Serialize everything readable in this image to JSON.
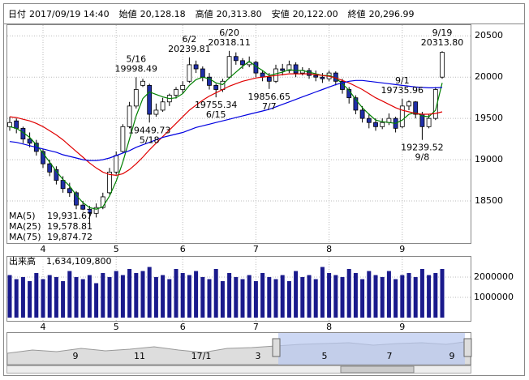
{
  "header": {
    "items": [
      {
        "label": "日付",
        "value": "2017/09/19 14:40",
        "color": "#000000"
      },
      {
        "label": "始値",
        "value": "20,128.18",
        "color": "#000000"
      },
      {
        "label": "高値",
        "value": "20,313.80",
        "color": "#e00000"
      },
      {
        "label": "安値",
        "value": "20,122.00",
        "color": "#008000"
      },
      {
        "label": "終値",
        "value": "20,296.99",
        "color": "#000000"
      }
    ]
  },
  "chart_data": [
    {
      "type": "candlestick",
      "up_color": "#ffffff",
      "down_color": "#1f2fa8",
      "grid": true,
      "categories": [
        null,
        null,
        null,
        null,
        null,
        "4",
        null,
        null,
        null,
        null,
        null,
        null,
        null,
        null,
        null,
        null,
        "5",
        null,
        null,
        null,
        null,
        null,
        null,
        null,
        null,
        null,
        "6",
        null,
        null,
        null,
        null,
        null,
        null,
        null,
        null,
        null,
        null,
        "7",
        null,
        null,
        null,
        null,
        null,
        null,
        null,
        null,
        null,
        null,
        "8",
        null,
        null,
        null,
        null,
        null,
        null,
        null,
        null,
        null,
        null,
        "9",
        null,
        null,
        null,
        null,
        null,
        null
      ],
      "open": [
        19400,
        19470,
        19380,
        19250,
        19200,
        19100,
        18950,
        18880,
        18750,
        18650,
        18600,
        18450,
        18400,
        18350,
        18420,
        18600,
        18850,
        19100,
        19400,
        19650,
        19900,
        19900,
        19550,
        19600,
        19700,
        19780,
        19850,
        19950,
        20150,
        20100,
        20000,
        19900,
        19850,
        20000,
        20250,
        20200,
        20150,
        20180,
        20050,
        20000,
        19950,
        20100,
        20080,
        20150,
        20050,
        20080,
        20020,
        20000,
        19980,
        20050,
        19950,
        19850,
        19750,
        19600,
        19500,
        19450,
        19400,
        19450,
        19500,
        19400,
        19650,
        19700,
        19550,
        19400,
        19500,
        20000
      ],
      "high": [
        19520,
        19500,
        19400,
        19330,
        19240,
        19130,
        19000,
        18920,
        18800,
        18720,
        18620,
        18500,
        18440,
        18470,
        18600,
        18900,
        19100,
        19430,
        19700,
        19998.49,
        19980,
        19920,
        19680,
        19750,
        19800,
        19880,
        19950,
        20239.81,
        20200,
        20130,
        20050,
        19920,
        19980,
        20318.11,
        20300,
        20230,
        20250,
        20200,
        20080,
        20050,
        20150,
        20160,
        20200,
        20180,
        20120,
        20110,
        20080,
        20050,
        20080,
        20070,
        19980,
        19880,
        19780,
        19650,
        19560,
        19500,
        19500,
        19560,
        19520,
        19735.96,
        19720,
        19710,
        19580,
        19550,
        19880,
        20313.8
      ],
      "low": [
        19350,
        19320,
        19200,
        19150,
        19050,
        18900,
        18800,
        18700,
        18600,
        18550,
        18400,
        18350,
        18230,
        18300,
        18400,
        18580,
        18820,
        19080,
        19380,
        19620,
        19880,
        19449.73,
        19520,
        19580,
        19650,
        19740,
        19800,
        19930,
        20050,
        19950,
        19850,
        19755.34,
        19820,
        19980,
        20150,
        20100,
        20120,
        20000,
        19950,
        19856.65,
        19930,
        20020,
        20050,
        20000,
        20020,
        19980,
        19950,
        19930,
        19950,
        19900,
        19800,
        19680,
        19550,
        19450,
        19380,
        19350,
        19370,
        19420,
        19330,
        19380,
        19600,
        19500,
        19239.52,
        19380,
        19480,
        19980
      ],
      "close": [
        19450,
        19380,
        19250,
        19200,
        19100,
        18950,
        18850,
        18750,
        18650,
        18600,
        18450,
        18400,
        18350,
        18420,
        18550,
        18850,
        19050,
        19400,
        19650,
        19850,
        19950,
        19550,
        19600,
        19700,
        19780,
        19850,
        19900,
        20150,
        20100,
        20000,
        19900,
        19850,
        19950,
        20250,
        20200,
        20150,
        20180,
        20050,
        20000,
        19950,
        20100,
        20080,
        20150,
        20050,
        20080,
        20020,
        20000,
        19980,
        20050,
        19950,
        19850,
        19750,
        19600,
        19500,
        19450,
        19400,
        19450,
        19500,
        19380,
        19650,
        19700,
        19550,
        19400,
        19500,
        19850,
        20300
      ],
      "series": [
        {
          "name": "MA(5)",
          "value_label": "19,931.67",
          "color": "#008000",
          "values": [
            19400,
            19380,
            19330,
            19270,
            19180,
            19080,
            18970,
            18860,
            18760,
            18680,
            18570,
            18480,
            18420,
            18400,
            18430,
            18560,
            18740,
            18970,
            19250,
            19530,
            19740,
            19820,
            19790,
            19760,
            19740,
            19750,
            19800,
            19900,
            19970,
            20000,
            19980,
            19930,
            19910,
            19990,
            20060,
            20130,
            20190,
            20130,
            20080,
            20020,
            20040,
            20060,
            20090,
            20080,
            20080,
            20060,
            20040,
            20020,
            20020,
            19990,
            19920,
            19840,
            19730,
            19630,
            19550,
            19480,
            19460,
            19450,
            19440,
            19480,
            19550,
            19570,
            19530,
            19520,
            19600,
            19930
          ]
        },
        {
          "name": "MA(25)",
          "value_label": "19,578.81",
          "color": "#e00000",
          "values": [
            19520,
            19510,
            19490,
            19470,
            19440,
            19400,
            19350,
            19300,
            19240,
            19170,
            19100,
            19030,
            18960,
            18900,
            18850,
            18820,
            18810,
            18830,
            18880,
            18950,
            19030,
            19120,
            19200,
            19280,
            19360,
            19440,
            19520,
            19600,
            19660,
            19720,
            19770,
            19810,
            19850,
            19890,
            19920,
            19950,
            19970,
            19990,
            20000,
            20010,
            20020,
            20030,
            20040,
            20040,
            20040,
            20040,
            20030,
            20020,
            20010,
            19990,
            19960,
            19930,
            19890,
            19850,
            19800,
            19750,
            19710,
            19670,
            19630,
            19600,
            19580,
            19560,
            19550,
            19550,
            19560,
            19580
          ]
        },
        {
          "name": "MA(75)",
          "value_label": "19,874.72",
          "color": "#0000e0",
          "values": [
            19220,
            19210,
            19190,
            19170,
            19150,
            19130,
            19110,
            19090,
            19060,
            19040,
            19020,
            19000,
            18990,
            18990,
            19000,
            19020,
            19050,
            19080,
            19110,
            19150,
            19180,
            19210,
            19240,
            19270,
            19290,
            19310,
            19330,
            19360,
            19390,
            19410,
            19430,
            19450,
            19470,
            19490,
            19510,
            19530,
            19550,
            19570,
            19590,
            19610,
            19640,
            19670,
            19700,
            19730,
            19760,
            19790,
            19820,
            19850,
            19880,
            19910,
            19930,
            19950,
            19960,
            19960,
            19950,
            19940,
            19930,
            19920,
            19910,
            19900,
            19890,
            19880,
            19875,
            19870,
            19870,
            19875
          ]
        }
      ],
      "annotations": [
        {
          "date": "5/16",
          "value": 19998.49
        },
        {
          "date": "5/18",
          "value": 19449.73
        },
        {
          "date": "6/2",
          "value": 20239.81
        },
        {
          "date": "6/15",
          "value": 19755.34
        },
        {
          "date": "6/20",
          "value": 20318.11
        },
        {
          "date": "7/7",
          "value": 19856.65
        },
        {
          "date": "9/1",
          "value": 19735.96
        },
        {
          "date": "9/8",
          "value": 19239.52
        },
        {
          "date": "9/19",
          "value": 20313.8,
          "value_label": "20313.80"
        }
      ],
      "ylim": [
        17990,
        20630
      ],
      "yticks": [
        18500,
        19000,
        19500,
        20000,
        20500
      ]
    },
    {
      "type": "bar",
      "title": "出来高",
      "value_label": "1,634,109,800",
      "color": "#1a1a8c",
      "grid": true,
      "values": [
        2100000,
        1900000,
        2000000,
        1800000,
        2200000,
        1900000,
        2100000,
        2000000,
        1800000,
        2300000,
        2000000,
        1900000,
        2100000,
        1700000,
        2200000,
        2000000,
        2300000,
        2100000,
        2400000,
        2200000,
        2300000,
        2500000,
        2000000,
        2100000,
        1900000,
        2400000,
        2200000,
        2100000,
        2300000,
        2000000,
        1900000,
        2400000,
        1800000,
        2200000,
        2000000,
        1900000,
        2100000,
        1800000,
        2200000,
        2000000,
        1900000,
        2100000,
        1800000,
        2300000,
        2000000,
        2100000,
        1900000,
        2500000,
        2200000,
        2100000,
        2000000,
        2400000,
        2200000,
        1900000,
        2300000,
        2100000,
        2000000,
        2300000,
        1900000,
        2100000,
        2200000,
        2000000,
        2400000,
        2100000,
        2200000,
        2400000
      ],
      "ylim": [
        0,
        3000000
      ],
      "yticks": [
        1000000,
        2000000
      ]
    }
  ],
  "navigator": {
    "labels": [
      "9",
      "11",
      "17/1",
      "3",
      "5",
      "7",
      "9"
    ]
  }
}
